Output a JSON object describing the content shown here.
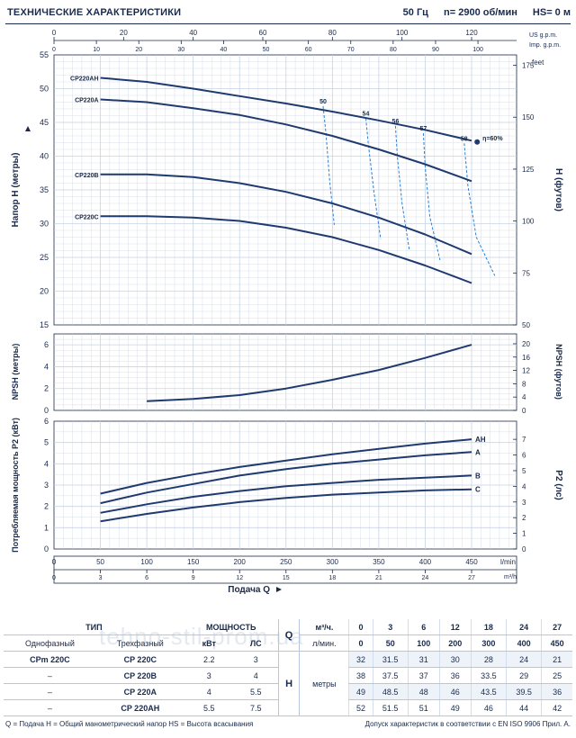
{
  "header": {
    "title": "ТЕХНИЧЕСКИЕ ХАРАКТЕРИСТИКИ",
    "freq": "50 Гц",
    "speed": "n= 2900  об/мин",
    "hs": "HS= 0 м"
  },
  "chart_data": [
    {
      "type": "line",
      "name": "head",
      "ylabel": "Напор H (метры)",
      "y2label": "H (футов)",
      "ylim": [
        15,
        55
      ],
      "y_ticks": [
        15,
        20,
        25,
        30,
        35,
        40,
        45,
        50,
        55
      ],
      "y2lim": [
        50,
        180
      ],
      "y2_ticks": [
        50,
        75,
        100,
        125,
        150,
        175
      ],
      "y2_unit": "feet",
      "x_top_us": {
        "label": "US g.p.m.",
        "lim": [
          0,
          120
        ],
        "ticks": [
          0,
          20,
          40,
          60,
          80,
          100,
          120
        ]
      },
      "x_top_imp": {
        "label": "Imp. g.p.m.",
        "lim": [
          0,
          100
        ],
        "ticks": [
          0,
          10,
          20,
          30,
          40,
          50,
          60,
          70,
          80,
          90,
          100
        ]
      },
      "series": [
        {
          "name": "CP220AH",
          "x": [
            50,
            100,
            150,
            200,
            250,
            300,
            350,
            400,
            450
          ],
          "y": [
            51.6,
            51.0,
            50.0,
            48.9,
            47.8,
            46.6,
            45.3,
            43.9,
            42.3
          ]
        },
        {
          "name": "CP220A",
          "x": [
            50,
            100,
            150,
            200,
            250,
            300,
            350,
            400,
            450
          ],
          "y": [
            48.4,
            48.0,
            47.1,
            46.1,
            44.7,
            43.0,
            41.0,
            38.8,
            36.3
          ]
        },
        {
          "name": "CP220B",
          "x": [
            50,
            100,
            150,
            200,
            250,
            300,
            350,
            400,
            450
          ],
          "y": [
            37.3,
            37.3,
            36.9,
            36.0,
            34.7,
            33.0,
            30.9,
            28.4,
            25.5
          ]
        },
        {
          "name": "CP220C",
          "x": [
            50,
            100,
            150,
            200,
            250,
            300,
            350,
            400,
            450
          ],
          "y": [
            31.1,
            31.1,
            30.9,
            30.4,
            29.4,
            28.0,
            26.1,
            23.8,
            21.2
          ]
        }
      ],
      "efficiency": [
        {
          "label": "50",
          "x": [
            290,
            293,
            297,
            302
          ],
          "y": [
            47.4,
            43.5,
            36.5,
            29.8
          ]
        },
        {
          "label": "54",
          "x": [
            336,
            339,
            345,
            352
          ],
          "y": [
            45.6,
            41.5,
            34.5,
            27.7
          ]
        },
        {
          "label": "56",
          "x": [
            368,
            370,
            375,
            383
          ],
          "y": [
            44.5,
            40.0,
            33.0,
            26.0
          ]
        },
        {
          "label": "57",
          "x": [
            398,
            400,
            405,
            416
          ],
          "y": [
            43.4,
            38.5,
            31.0,
            24.6
          ]
        },
        {
          "label": "58",
          "x": [
            442,
            446,
            455,
            475
          ],
          "y": [
            41.9,
            35.6,
            28.0,
            22.3
          ]
        }
      ],
      "eta_label": "η=60%",
      "eta_point": {
        "x": 456,
        "y": 42.1
      }
    },
    {
      "type": "line",
      "name": "npsh",
      "ylabel": "NPSH (метры)",
      "y2label": "NPSH (футов)",
      "ylim": [
        0,
        7
      ],
      "y_ticks": [
        0,
        2,
        4,
        6
      ],
      "y2lim": [
        0,
        22.96
      ],
      "y2_ticks": [
        0,
        4,
        8,
        12,
        16,
        20
      ],
      "series": [
        {
          "name": "NPSH",
          "x": [
            100,
            150,
            200,
            250,
            300,
            350,
            400,
            450
          ],
          "y": [
            0.85,
            1.05,
            1.4,
            2.0,
            2.8,
            3.7,
            4.8,
            6.0
          ]
        }
      ]
    },
    {
      "type": "line",
      "name": "power",
      "ylabel": "Потребляемая мощность P2 (кВт)",
      "y2label": "P2 (лс)",
      "ylim": [
        0,
        6
      ],
      "y_ticks": [
        0,
        1,
        2,
        3,
        4,
        5,
        6
      ],
      "y2lim": [
        0,
        8.157
      ],
      "y2_ticks": [
        0,
        1,
        2,
        3,
        4,
        5,
        6,
        7
      ],
      "series": [
        {
          "name": "AH",
          "x": [
            50,
            100,
            150,
            200,
            250,
            300,
            350,
            400,
            450
          ],
          "y": [
            2.6,
            3.1,
            3.5,
            3.85,
            4.15,
            4.45,
            4.7,
            4.95,
            5.15
          ]
        },
        {
          "name": "A",
          "x": [
            50,
            100,
            150,
            200,
            250,
            300,
            350,
            400,
            450
          ],
          "y": [
            2.15,
            2.65,
            3.05,
            3.45,
            3.75,
            4.0,
            4.2,
            4.4,
            4.55
          ]
        },
        {
          "name": "B",
          "x": [
            50,
            100,
            150,
            200,
            250,
            300,
            350,
            400,
            450
          ],
          "y": [
            1.7,
            2.1,
            2.45,
            2.72,
            2.95,
            3.1,
            3.25,
            3.35,
            3.45
          ]
        },
        {
          "name": "C",
          "x": [
            50,
            100,
            150,
            200,
            250,
            300,
            350,
            400,
            450
          ],
          "y": [
            1.3,
            1.65,
            1.95,
            2.2,
            2.4,
            2.55,
            2.65,
            2.75,
            2.8
          ]
        }
      ]
    }
  ],
  "x_axis": {
    "lpm_ticks": [
      0,
      50,
      100,
      150,
      200,
      250,
      300,
      350,
      400,
      450
    ],
    "lpm_unit": "l/min",
    "m3h_ticks": [
      0,
      3,
      6,
      9,
      12,
      15,
      18,
      21,
      24,
      27
    ],
    "m3h_unit": "m³/h",
    "xlim": [
      0,
      450
    ],
    "label": "Подача Q"
  },
  "table": {
    "type_label": "ТИП",
    "power_label": "МОЩНОСТЬ",
    "single_phase": "Однофазный",
    "three_phase": "Трехфазный",
    "kw": "кВт",
    "hp": "ЛС",
    "q_label": "Q",
    "q_unit_m3h": "м³/ч.",
    "q_unit_lpm": "л/мин.",
    "h_label": "H",
    "h_unit": "метры",
    "q_m3h": [
      "0",
      "3",
      "6",
      "12",
      "18",
      "24",
      "27"
    ],
    "q_lpm": [
      "0",
      "50",
      "100",
      "200",
      "300",
      "400",
      "450"
    ],
    "rows": [
      {
        "single": "CPm 220C",
        "three": "CP 220C",
        "kw": "2.2",
        "hp": "3",
        "h": [
          "32",
          "31.5",
          "31",
          "30",
          "28",
          "24",
          "21"
        ]
      },
      {
        "single": "–",
        "three": "CP 220B",
        "kw": "3",
        "hp": "4",
        "h": [
          "38",
          "37.5",
          "37",
          "36",
          "33.5",
          "29",
          "25"
        ]
      },
      {
        "single": "–",
        "three": "CP 220A",
        "kw": "4",
        "hp": "5.5",
        "h": [
          "49",
          "48.5",
          "48",
          "46",
          "43.5",
          "39.5",
          "36"
        ]
      },
      {
        "single": "–",
        "three": "CP 220AH",
        "kw": "5.5",
        "hp": "7.5",
        "h": [
          "52",
          "51.5",
          "51",
          "49",
          "46",
          "44",
          "42"
        ]
      }
    ]
  },
  "footer": {
    "left": "Q = Подача  H = Общий манометрический напор  HS = Высота всасывания",
    "right": "Допуск характеристик в соответствии с EN ISO 9906 Прил. A."
  },
  "watermark": "tehno-stil-prom.ua",
  "colors": {
    "curve": "#1f3a6e",
    "efficiency": "#2a7fd6",
    "grid": "#c7d3e3",
    "panel": "#ffffff",
    "axis": "#1a2a4a"
  }
}
